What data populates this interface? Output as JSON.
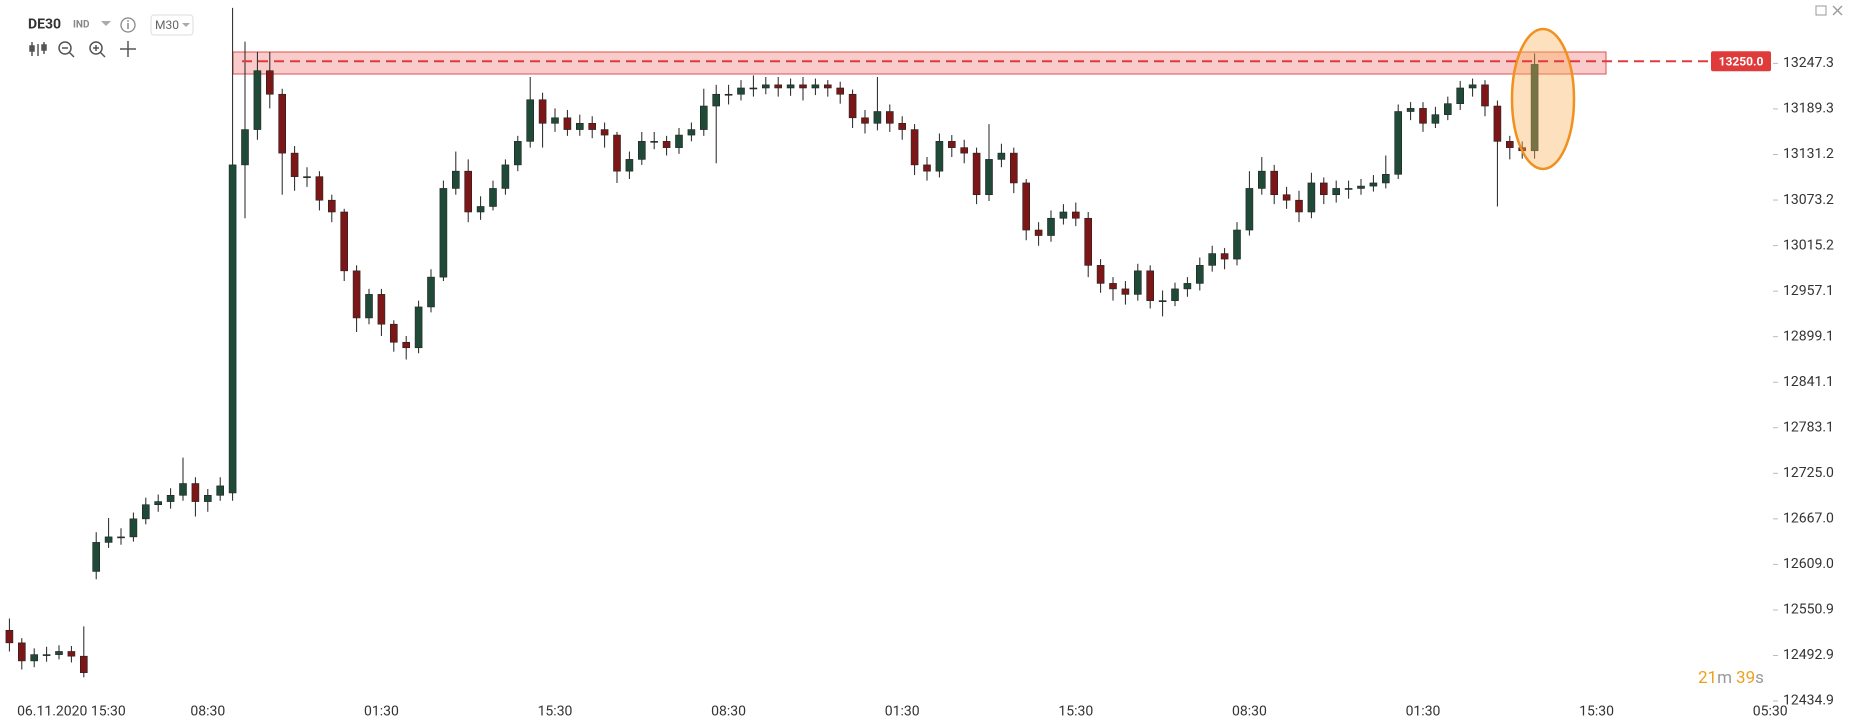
{
  "chart_data": {
    "type": "candlestick",
    "title": "DE30",
    "instrument_type": "IND",
    "interval": "M30",
    "categories": [
      null,
      null,
      null,
      null,
      null,
      "06.11.2020 15:30",
      null,
      null,
      null,
      null,
      null,
      null,
      null,
      null,
      null,
      null,
      "08:30",
      null,
      null,
      null,
      null,
      null,
      null,
      null,
      null,
      null,
      null,
      null,
      null,
      null,
      "01:30",
      null,
      null,
      null,
      null,
      null,
      null,
      null,
      null,
      null,
      null,
      null,
      null,
      null,
      "15:30",
      null,
      null,
      null,
      null,
      null,
      null,
      null,
      null,
      null,
      null,
      null,
      null,
      null,
      "08:30",
      null,
      null,
      null,
      null,
      null,
      null,
      null,
      null,
      null,
      null,
      null,
      null,
      null,
      "01:30",
      null,
      null,
      null,
      null,
      null,
      null,
      null,
      null,
      null,
      null,
      null,
      null,
      null,
      "15:30",
      null,
      null,
      null,
      null,
      null,
      null,
      null,
      null,
      null,
      null,
      null,
      null,
      null,
      "08:30",
      null,
      null,
      null,
      null,
      null,
      null,
      null,
      null,
      null,
      null,
      null,
      null,
      null,
      "01:30",
      null,
      null,
      null,
      null,
      null,
      null,
      null,
      null,
      null,
      null,
      null,
      null,
      null,
      "15:30",
      null,
      null,
      null,
      null,
      null,
      null,
      null,
      null,
      null,
      null,
      null,
      null,
      null,
      "05:30"
    ],
    "open": [
      12525,
      12509,
      12486,
      12494,
      12494,
      12498,
      12492,
      12600,
      12637,
      12644,
      12644,
      12667,
      12685,
      12689,
      12697,
      12712,
      12689,
      12697,
      12700,
      13118,
      13163,
      13238,
      13208,
      13133,
      13103,
      13103,
      13073,
      13058,
      12983,
      12923,
      12953,
      12915,
      12892,
      12885,
      12937,
      12975,
      13088,
      13110,
      13058,
      13065,
      13088,
      13118,
      13148,
      13201,
      13171,
      13178,
      13163,
      13171,
      13163,
      13156,
      13110,
      13125,
      13148,
      13148,
      13140,
      13156,
      13163,
      13193,
      13208,
      13208,
      13216,
      13216,
      13220,
      13216,
      13220,
      13216,
      13220,
      13216,
      13208,
      13178,
      13171,
      13186,
      13171,
      13163,
      13118,
      13110,
      13148,
      13140,
      13133,
      13080,
      13125,
      13133,
      13095,
      13035,
      13028,
      13050,
      13058,
      13050,
      12990,
      12967,
      12960,
      12953,
      12983,
      12945,
      12945,
      12960,
      12967,
      12990,
      13005,
      12998,
      13035,
      13088,
      13110,
      13080,
      13073,
      13058,
      13095,
      13080,
      13088,
      13088,
      13091,
      13095,
      13106,
      13186,
      13190,
      13171,
      13182,
      13196,
      13216,
      13220,
      13193,
      13148,
      13140,
      13136,
      null,
      null,
      null,
      null,
      null,
      null,
      null,
      null,
      null,
      null,
      null,
      null,
      null,
      null,
      null,
      null,
      null,
      null,
      null
    ],
    "high": [
      12540,
      12515,
      12502,
      12504,
      12506,
      12505,
      12530,
      12650,
      12668,
      12655,
      12675,
      12694,
      12698,
      12706,
      12745,
      12720,
      12705,
      12720,
      13318,
      13275,
      13262,
      13262,
      13215,
      13142,
      13115,
      13110,
      13080,
      13062,
      12990,
      12960,
      12960,
      12920,
      12900,
      12945,
      12985,
      13098,
      13135,
      13125,
      13078,
      13098,
      13125,
      13155,
      13230,
      13210,
      13190,
      13188,
      13182,
      13180,
      13172,
      13160,
      13135,
      13160,
      13160,
      13155,
      13165,
      13172,
      13215,
      13220,
      13220,
      13226,
      13232,
      13230,
      13230,
      13228,
      13230,
      13228,
      13226,
      13224,
      13214,
      13188,
      13230,
      13195,
      13180,
      13170,
      13128,
      13158,
      13156,
      13150,
      13140,
      13170,
      13145,
      13140,
      13100,
      13045,
      13060,
      13068,
      13070,
      13058,
      12998,
      12975,
      12970,
      12992,
      12990,
      12958,
      12968,
      12975,
      13000,
      13015,
      13012,
      13045,
      13110,
      13128,
      13118,
      13090,
      13085,
      13108,
      13102,
      13098,
      13098,
      13100,
      13105,
      13130,
      13195,
      13198,
      13198,
      13192,
      13205,
      13225,
      13228,
      13226,
      13200,
      13155,
      13148,
      13260,
      null,
      null,
      null,
      null,
      null,
      null,
      null,
      null,
      null,
      null,
      null,
      null,
      null,
      null,
      null,
      null,
      null,
      null,
      null
    ],
    "low": [
      12498,
      12475,
      12478,
      12485,
      12488,
      12484,
      12465,
      12590,
      12630,
      12634,
      12638,
      12660,
      12676,
      12680,
      12690,
      12670,
      12676,
      12690,
      12690,
      13050,
      13150,
      13190,
      13080,
      13085,
      13090,
      13060,
      13045,
      12970,
      12905,
      12915,
      12900,
      12880,
      12870,
      12878,
      12930,
      12970,
      13080,
      13045,
      13048,
      13060,
      13080,
      13110,
      13140,
      13140,
      13160,
      13155,
      13155,
      13152,
      13140,
      13095,
      13100,
      13118,
      13138,
      13130,
      13132,
      13148,
      13155,
      13120,
      13195,
      13200,
      13205,
      13208,
      13205,
      13206,
      13200,
      13207,
      13205,
      13196,
      13165,
      13158,
      13162,
      13160,
      13150,
      13105,
      13098,
      13102,
      13128,
      13120,
      13068,
      13072,
      13115,
      13082,
      13022,
      13015,
      13020,
      13042,
      13040,
      12975,
      12955,
      12945,
      12940,
      12945,
      12935,
      12925,
      12938,
      12950,
      12958,
      12982,
      12985,
      12990,
      13028,
      13080,
      13068,
      13062,
      13045,
      13050,
      13068,
      13070,
      13075,
      13080,
      13084,
      13088,
      13100,
      13175,
      13160,
      13165,
      13175,
      13188,
      13205,
      13180,
      13065,
      13125,
      13126,
      13126,
      null,
      null,
      null,
      null,
      null,
      null,
      null,
      null,
      null,
      null,
      null,
      null,
      null,
      null,
      null,
      null,
      null,
      null,
      null
    ],
    "close": [
      12509,
      12486,
      12494,
      12494,
      12498,
      12492,
      12471,
      12637,
      12644,
      12644,
      12667,
      12685,
      12689,
      12697,
      12712,
      12689,
      12697,
      12709,
      13118,
      13163,
      13238,
      13208,
      13133,
      13103,
      13103,
      13073,
      13058,
      12983,
      12923,
      12953,
      12915,
      12892,
      12885,
      12937,
      12975,
      13088,
      13110,
      13058,
      13065,
      13088,
      13118,
      13148,
      13201,
      13171,
      13178,
      13163,
      13171,
      13163,
      13156,
      13110,
      13125,
      13148,
      13148,
      13140,
      13156,
      13163,
      13193,
      13208,
      13208,
      13216,
      13216,
      13220,
      13216,
      13220,
      13216,
      13220,
      13216,
      13208,
      13178,
      13171,
      13186,
      13171,
      13163,
      13118,
      13110,
      13148,
      13140,
      13133,
      13080,
      13125,
      13133,
      13095,
      13035,
      13028,
      13050,
      13058,
      13050,
      12990,
      12967,
      12960,
      12953,
      12983,
      12945,
      12945,
      12960,
      12967,
      12990,
      13005,
      12998,
      13035,
      13088,
      13110,
      13080,
      13073,
      13058,
      13095,
      13080,
      13088,
      13088,
      13091,
      13095,
      13106,
      13186,
      13190,
      13171,
      13182,
      13196,
      13216,
      13220,
      13193,
      13148,
      13140,
      13136,
      13246,
      null,
      null,
      null,
      null,
      null,
      null,
      null,
      null,
      null,
      null,
      null,
      null,
      null,
      null,
      null,
      null,
      null,
      null,
      null
    ],
    "up_color": "#1f4a38",
    "down_color": "#7d1616",
    "ylim": [
      12434.9,
      13328.1
    ],
    "yticks": [
      13247.3,
      13189.3,
      13131.2,
      13073.2,
      13015.2,
      12957.1,
      12899.1,
      12841.1,
      12783.1,
      {
        "value": 12725,
        "label": "12725.0"
      },
      {
        "value": 12667,
        "label": "12667.0"
      },
      {
        "value": 12609,
        "label": "12609.0"
      },
      12550.9,
      12492.9,
      12434.9
    ],
    "price_line": {
      "value": 13250,
      "label": "13250.0",
      "color": "#e03b3b"
    },
    "timer": [
      "21",
      "m",
      "39",
      "s"
    ]
  }
}
